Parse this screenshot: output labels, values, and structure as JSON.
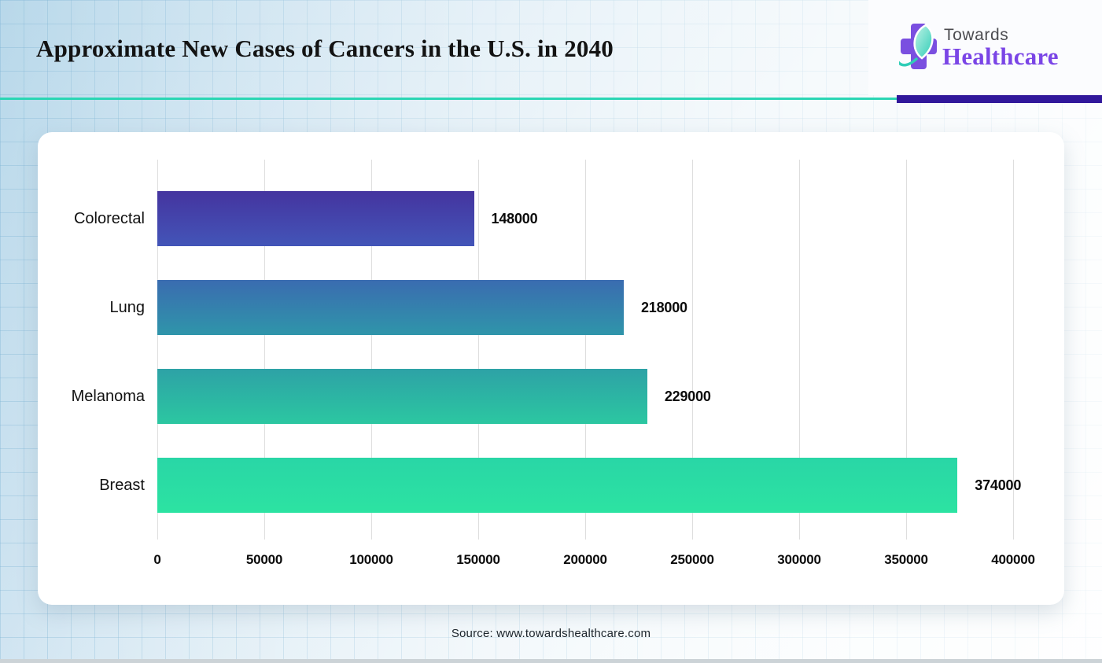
{
  "header": {
    "title": "Approximate New Cases of Cancers in the U.S. in 2040",
    "logo": {
      "line1": "Towards",
      "line2": "Healthcare"
    },
    "colors": {
      "divider_teal": "#2bd6b4",
      "divider_purple": "#31189b",
      "logo_cross_purple": "#7a4fe0",
      "logo_leaf_teal": "#2fcdb7",
      "logo_leaf_light": "#c2f3e6",
      "logo_towards_gray": "#4c4c50",
      "logo_healthcare_purple": "#7a45e6"
    }
  },
  "chart_data": {
    "type": "bar",
    "orientation": "horizontal",
    "title": "Approximate New Cases of Cancers in the U.S. in 2040",
    "categories": [
      "Colorectal",
      "Lung",
      "Melanoma",
      "Breast"
    ],
    "values": [
      148000,
      218000,
      229000,
      374000
    ],
    "value_labels": [
      "148000",
      "218000",
      "229000",
      "374000"
    ],
    "xlabel": "",
    "ylabel": "",
    "xlim": [
      0,
      400000
    ],
    "xticks": [
      0,
      50000,
      100000,
      150000,
      200000,
      250000,
      300000,
      350000,
      400000
    ],
    "grid": "vertical-only",
    "legend": "none",
    "bar_colors": [
      {
        "top": "#45349f",
        "bottom": "#4355b8"
      },
      {
        "top": "#3a6cb0",
        "bottom": "#2f95aa"
      },
      {
        "top": "#2da2a6",
        "bottom": "#2cc7a1"
      },
      {
        "top": "#29d6a6",
        "bottom": "#2ce3a2"
      }
    ]
  },
  "footer": {
    "source": "Source: www.towardshealthcare.com"
  }
}
